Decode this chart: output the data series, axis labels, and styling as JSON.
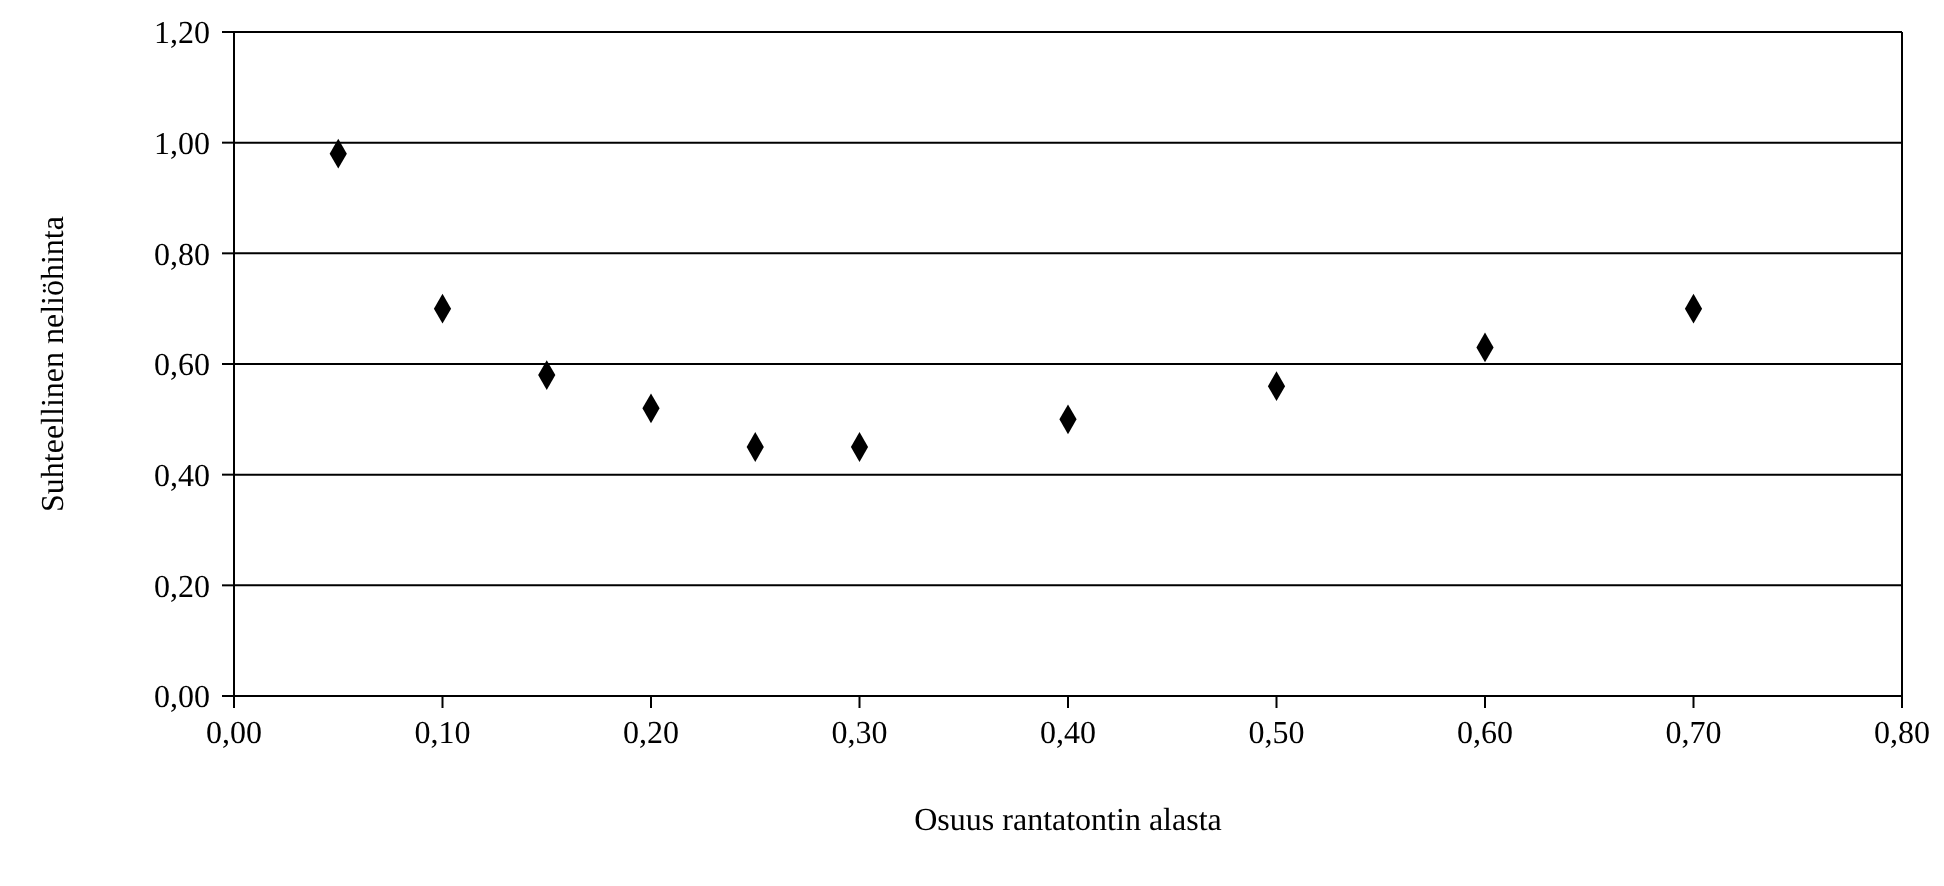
{
  "chart_data": {
    "type": "scatter",
    "xlabel": "Osuus rantatontin alasta",
    "ylabel": "Suhteellinen neliöhinta",
    "x": [
      0.05,
      0.1,
      0.15,
      0.2,
      0.25,
      0.3,
      0.4,
      0.5,
      0.6,
      0.7
    ],
    "series": [
      {
        "color": "#000000",
        "values": [
          0.98,
          0.7,
          0.58,
          0.52,
          0.45,
          0.45,
          0.5,
          0.56,
          0.63,
          0.7
        ]
      }
    ],
    "xlim": [
      0,
      0.8
    ],
    "xticks": [
      {
        "value": 0,
        "label": "0,00"
      },
      {
        "value": 0.1,
        "label": "0,10"
      },
      {
        "value": 0.2,
        "label": "0,20"
      },
      {
        "value": 0.3,
        "label": "0,30"
      },
      {
        "value": 0.4,
        "label": "0,40"
      },
      {
        "value": 0.5,
        "label": "0,50"
      },
      {
        "value": 0.6,
        "label": "0,60"
      },
      {
        "value": 0.7,
        "label": "0,70"
      },
      {
        "value": 0.8,
        "label": "0,80"
      }
    ],
    "ylim": [
      0,
      1.2
    ],
    "yticks": [
      {
        "value": 0,
        "label": "0,00"
      },
      {
        "value": 0.2,
        "label": "0,20"
      },
      {
        "value": 0.4,
        "label": "0,40"
      },
      {
        "value": 0.6,
        "label": "0,60"
      },
      {
        "value": 0.8,
        "label": "0,80"
      },
      {
        "value": 1,
        "label": "1,00"
      },
      {
        "value": 1.2,
        "label": "1,20"
      }
    ],
    "grid": "y",
    "marker": "diamond"
  }
}
